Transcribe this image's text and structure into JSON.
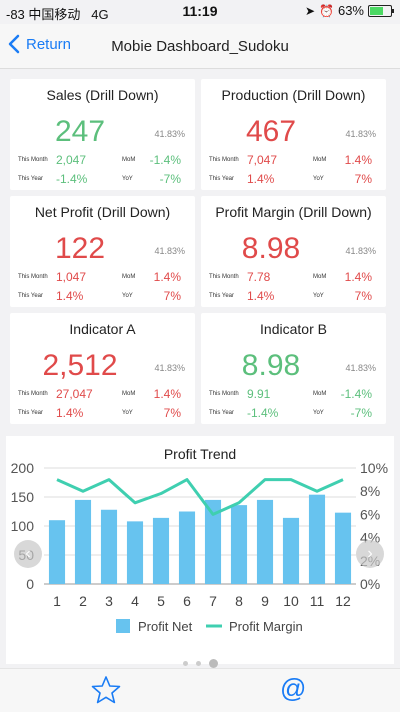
{
  "status": {
    "signal": "-83 中国移动",
    "network": "4G",
    "time": "11:19",
    "battery": "63%",
    "battery_level": 0.63
  },
  "nav": {
    "back_label": "Return",
    "title": "Mobie Dashboard_Sudoku"
  },
  "cards": [
    {
      "title": "Sales (Drill Down)",
      "value": "247",
      "value_color": "#5cbf7c",
      "pct": "41.83%",
      "this_month_label": "This Month",
      "this_month": "2,047",
      "this_month_color": "#5cbf7c",
      "mom_label": "MoM",
      "mom": "-1.4%",
      "mom_color": "#5cbf7c",
      "this_year_label": "This Year",
      "this_year": "-1.4%",
      "this_year_color": "#5cbf7c",
      "yoy_label": "YoY",
      "yoy": "-7%",
      "yoy_color": "#5cbf7c"
    },
    {
      "title": "Production (Drill Down)",
      "value": "467",
      "value_color": "#e04a4a",
      "pct": "41.83%",
      "this_month_label": "This Month",
      "this_month": "7,047",
      "this_month_color": "#e04a4a",
      "mom_label": "MoM",
      "mom": "1.4%",
      "mom_color": "#e04a4a",
      "this_year_label": "This Year",
      "this_year": "1.4%",
      "this_year_color": "#e04a4a",
      "yoy_label": "YoY",
      "yoy": "7%",
      "yoy_color": "#e04a4a"
    },
    {
      "title": "Net Profit (Drill Down)",
      "value": "122",
      "value_color": "#e04a4a",
      "pct": "41.83%",
      "this_month_label": "This Month",
      "this_month": "1,047",
      "this_month_color": "#e04a4a",
      "mom_label": "MoM",
      "mom": "1.4%",
      "mom_color": "#e04a4a",
      "this_year_label": "This Year",
      "this_year": "1.4%",
      "this_year_color": "#e04a4a",
      "yoy_label": "YoY",
      "yoy": "7%",
      "yoy_color": "#e04a4a"
    },
    {
      "title": "Profit Margin (Drill Down)",
      "value": "8.98",
      "value_color": "#e04a4a",
      "pct": "41.83%",
      "this_month_label": "This Month",
      "this_month": "7.78",
      "this_month_color": "#e04a4a",
      "mom_label": "MoM",
      "mom": "1.4%",
      "mom_color": "#e04a4a",
      "this_year_label": "This Year",
      "this_year": "1.4%",
      "this_year_color": "#e04a4a",
      "yoy_label": "YoY",
      "yoy": "7%",
      "yoy_color": "#e04a4a"
    },
    {
      "title": "Indicator A",
      "value": "2,512",
      "value_color": "#e04a4a",
      "pct": "41.83%",
      "this_month_label": "This Month",
      "this_month": "27,047",
      "this_month_color": "#e04a4a",
      "mom_label": "MoM",
      "mom": "1.4%",
      "mom_color": "#e04a4a",
      "this_year_label": "This Year",
      "this_year": "1.4%",
      "this_year_color": "#e04a4a",
      "yoy_label": "YoY",
      "yoy": "7%",
      "yoy_color": "#e04a4a"
    },
    {
      "title": "Indicator B",
      "value": "8.98",
      "value_color": "#5cbf7c",
      "pct": "41.83%",
      "this_month_label": "This Month",
      "this_month": "9.91",
      "this_month_color": "#5cbf7c",
      "mom_label": "MoM",
      "mom": "-1.4%",
      "mom_color": "#5cbf7c",
      "this_year_label": "This Year",
      "this_year": "-1.4%",
      "this_year_color": "#5cbf7c",
      "yoy_label": "YoY",
      "yoy": "-7%",
      "yoy_color": "#5cbf7c"
    }
  ],
  "chart_data": {
    "type": "bar",
    "title": "Profit Trend",
    "categories": [
      "1",
      "2",
      "3",
      "4",
      "5",
      "6",
      "7",
      "8",
      "9",
      "10",
      "11",
      "12"
    ],
    "series": [
      {
        "name": "Profit Net",
        "type": "bar",
        "axis": "left",
        "color": "#67c3ef",
        "values": [
          110,
          145,
          128,
          108,
          114,
          125,
          145,
          136,
          145,
          114,
          154,
          123
        ]
      },
      {
        "name": "Profit Margin",
        "type": "line",
        "axis": "right",
        "color": "#3fcfb0",
        "values": [
          9,
          8,
          9,
          7,
          7.8,
          9,
          6,
          7,
          9,
          9,
          8,
          9
        ]
      }
    ],
    "ylim_left": [
      0,
      200
    ],
    "yticks_left": [
      "0",
      "50",
      "100",
      "150",
      "200"
    ],
    "ylim_right": [
      0,
      10
    ],
    "yticks_right": [
      "0%",
      "2%",
      "4%",
      "6%",
      "8%",
      "10%"
    ],
    "grid": true,
    "legend": "bottom"
  },
  "pager": {
    "count": 3,
    "active": 2
  },
  "tabs": [
    {
      "name": "favorites",
      "icon": "star-icon"
    },
    {
      "name": "mentions",
      "icon": "at-icon"
    }
  ]
}
